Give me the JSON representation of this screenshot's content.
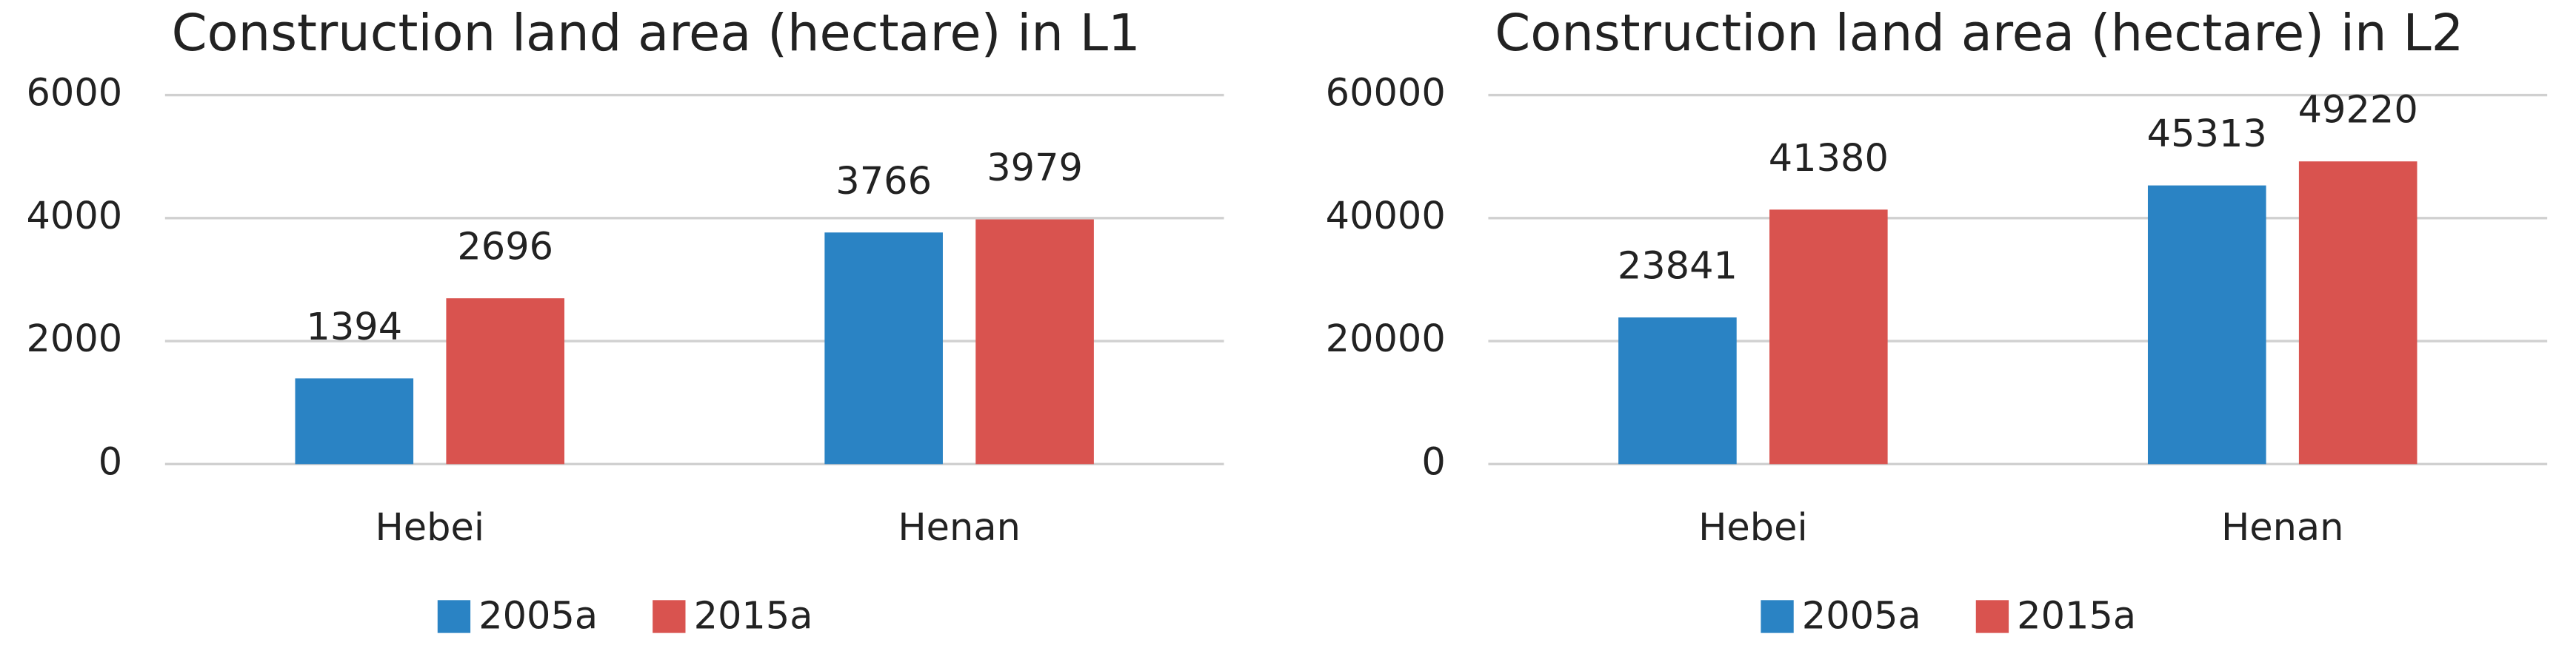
{
  "chart_data": [
    {
      "type": "bar",
      "title": "Construction land area (hectare) in L1",
      "categories": [
        "Hebei",
        "Henan"
      ],
      "series": [
        {
          "name": "2005a",
          "color": "#2a83c4",
          "values": [
            1394,
            3766
          ]
        },
        {
          "name": "2015a",
          "color": "#d9534f",
          "values": [
            2696,
            3979
          ]
        }
      ],
      "ylim": [
        0,
        6000
      ],
      "yticks": [
        0,
        2000,
        4000,
        6000
      ],
      "grid": true,
      "legend": "bottom"
    },
    {
      "type": "bar",
      "title": "Construction land area (hectare) in L2",
      "categories": [
        "Hebei",
        "Henan"
      ],
      "series": [
        {
          "name": "2005a",
          "color": "#2a83c4",
          "values": [
            23841,
            45313
          ]
        },
        {
          "name": "2015a",
          "color": "#d9534f",
          "values": [
            41380,
            49220
          ]
        }
      ],
      "ylim": [
        0,
        60000
      ],
      "yticks": [
        0,
        20000,
        40000,
        60000
      ],
      "grid": true,
      "legend": "bottom"
    }
  ]
}
